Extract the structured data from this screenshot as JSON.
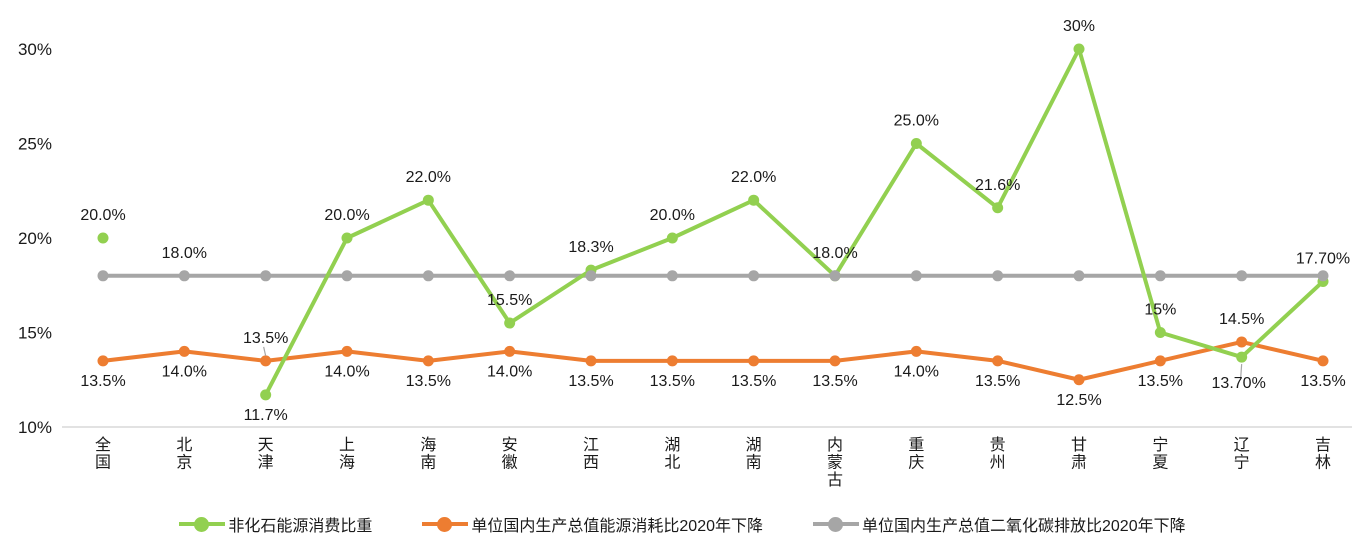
{
  "chart_data": {
    "type": "line",
    "title": "",
    "xlabel": "",
    "ylabel": "",
    "grid": false,
    "legend_position": "bottom",
    "categories": [
      "全国",
      "北京",
      "天津",
      "上海",
      "海南",
      "安徽",
      "江西",
      "湖北",
      "湖南",
      "内蒙古",
      "重庆",
      "贵州",
      "甘肃",
      "宁夏",
      "辽宁",
      "吉林"
    ],
    "y_axis": {
      "min": 10,
      "max": 30,
      "unit": "%",
      "tick_values": [
        10,
        15,
        20,
        25,
        30
      ],
      "tick_labels": [
        "10%",
        "15%",
        "20%",
        "25%",
        "30%"
      ]
    },
    "series": [
      {
        "name": "非化石能源消费比重",
        "color": "#92D050",
        "values": [
          20.0,
          null,
          11.7,
          20.0,
          22.0,
          15.5,
          18.3,
          20.0,
          22.0,
          18.0,
          25.0,
          21.6,
          30,
          15,
          13.7,
          17.7
        ],
        "labels": [
          "20.0%",
          null,
          "11.7%",
          "20.0%",
          "22.0%",
          "15.5%",
          "18.3%",
          "20.0%",
          "22.0%",
          "18.0%",
          "25.0%",
          "21.6%",
          "30%",
          "15%",
          "13.70%",
          "17.70%"
        ],
        "label_pos": [
          "above",
          null,
          "below",
          "above",
          "above",
          "above",
          "above",
          "above",
          "above",
          "above",
          "above",
          "above",
          "above",
          "above",
          "below-leader",
          "above"
        ]
      },
      {
        "name": "单位国内生产总值能源消耗比2020年下降",
        "color": "#ED7D31",
        "values": [
          13.5,
          14.0,
          13.5,
          14.0,
          13.5,
          14.0,
          13.5,
          13.5,
          13.5,
          13.5,
          14.0,
          13.5,
          12.5,
          13.5,
          14.5,
          13.5
        ],
        "labels": [
          "13.5%",
          "14.0%",
          "13.5%",
          "14.0%",
          "13.5%",
          "14.0%",
          "13.5%",
          "13.5%",
          "13.5%",
          "13.5%",
          "14.0%",
          "13.5%",
          "12.5%",
          "13.5%",
          "14.5%",
          "13.5%"
        ],
        "label_pos": [
          "below",
          "below",
          "above-leader",
          "below",
          "below",
          "below",
          "below",
          "below",
          "below",
          "below",
          "below",
          "below",
          "below",
          "below",
          "above",
          "below"
        ]
      },
      {
        "name": "单位国内生产总值二氧化碳排放比2020年下降",
        "color": "#A6A6A6",
        "values": [
          18,
          18,
          18,
          18,
          18,
          18,
          18,
          18,
          18,
          18,
          18,
          18,
          18,
          18,
          18,
          18
        ],
        "labels": [
          null,
          "18.0%",
          null,
          null,
          null,
          null,
          null,
          null,
          null,
          null,
          null,
          null,
          null,
          null,
          null,
          null
        ],
        "label_pos": [
          null,
          "above",
          null,
          null,
          null,
          null,
          null,
          null,
          null,
          null,
          null,
          null,
          null,
          null,
          null,
          null
        ]
      }
    ]
  },
  "colors": {
    "axis_line": "#D9D9D9",
    "text": "#1a1a1a",
    "leader": "#A6A6A6",
    "background": "#FFFFFF"
  }
}
